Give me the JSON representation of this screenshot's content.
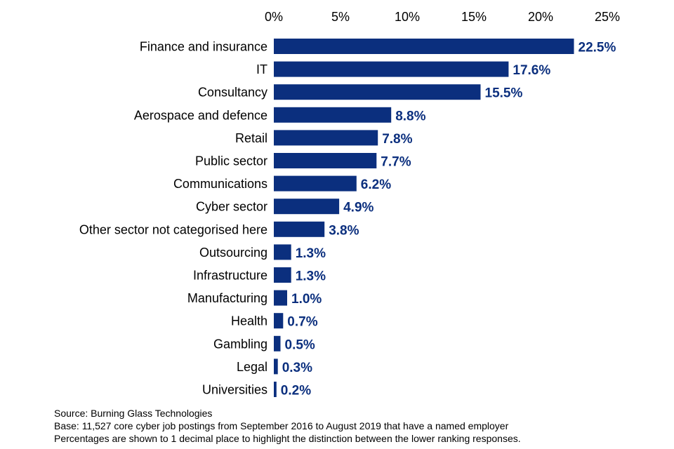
{
  "chart_data": {
    "type": "bar",
    "orientation": "horizontal",
    "categories": [
      "Finance and insurance",
      "IT",
      "Consultancy",
      "Aerospace and defence",
      "Retail",
      "Public sector",
      "Communications",
      "Cyber sector",
      "Other sector not categorised here",
      "Outsourcing",
      "Infrastructure",
      "Manufacturing",
      "Health",
      "Gambling",
      "Legal",
      "Universities"
    ],
    "values": [
      22.5,
      17.6,
      15.5,
      8.8,
      7.8,
      7.7,
      6.2,
      4.9,
      3.8,
      1.3,
      1.3,
      1.0,
      0.7,
      0.5,
      0.3,
      0.2
    ],
    "value_labels": [
      "22.5%",
      "17.6%",
      "15.5%",
      "8.8%",
      "7.8%",
      "7.7%",
      "6.2%",
      "4.9%",
      "3.8%",
      "1.3%",
      "1.3%",
      "1.0%",
      "0.7%",
      "0.5%",
      "0.3%",
      "0.2%"
    ],
    "xlim": [
      0,
      25
    ],
    "x_ticks": [
      0,
      5,
      10,
      15,
      20,
      25
    ],
    "x_tick_labels": [
      "0%",
      "5%",
      "10%",
      "15%",
      "20%",
      "25%"
    ],
    "x_axis_position": "top",
    "grid": false,
    "bar_color": "#0b2f7e",
    "label_color": "#0b2f7e"
  },
  "notes": {
    "source": "Source: Burning Glass Technologies",
    "base": "Base: 11,527 core cyber job postings from September 2016 to August 2019 that have a named employer",
    "percentages": "Percentages are shown to 1 decimal place to highlight the distinction between the lower ranking responses."
  }
}
